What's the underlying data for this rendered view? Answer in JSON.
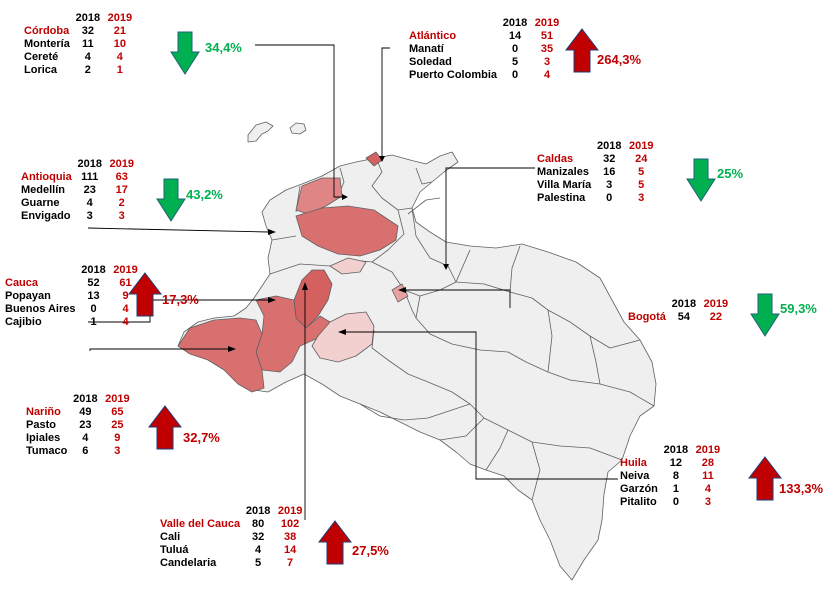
{
  "colors": {
    "increase": "#c00000",
    "decrease": "#00b050",
    "map_base": "#efefef",
    "map_border": "#606060",
    "leader_line": "#000000",
    "shade_high": "#d46060",
    "shade_mid": "#e08585",
    "shade_low": "#f3d0d0"
  },
  "year_headers": {
    "y2018": "2018",
    "y2019": "2019"
  },
  "groups": [
    {
      "id": "cordoba",
      "department": "Córdoba",
      "v2018": "32",
      "v2019": "21",
      "rows": [
        {
          "name": "Montería",
          "v2018": "11",
          "v2019": "10"
        },
        {
          "name": "Cereté",
          "v2018": "4",
          "v2019": "4"
        },
        {
          "name": "Lorica",
          "v2018": "2",
          "v2019": "1"
        }
      ],
      "change": "34,4%",
      "direction": "down",
      "arrow_icon": "arrow-down-icon"
    },
    {
      "id": "atlantico",
      "department": "Atlántico",
      "v2018": "14",
      "v2019": "51",
      "rows": [
        {
          "name": "Manatí",
          "v2018": "0",
          "v2019": "35"
        },
        {
          "name": "Soledad",
          "v2018": "5",
          "v2019": "3"
        },
        {
          "name": "Puerto Colombia",
          "v2018": "0",
          "v2019": "4"
        }
      ],
      "change": "264,3%",
      "direction": "up",
      "arrow_icon": "arrow-up-icon"
    },
    {
      "id": "antioquia",
      "department": "Antioquia",
      "v2018": "111",
      "v2019": "63",
      "rows": [
        {
          "name": "Medellín",
          "v2018": "23",
          "v2019": "17"
        },
        {
          "name": "Guarne",
          "v2018": "4",
          "v2019": "2"
        },
        {
          "name": "Envigado",
          "v2018": "3",
          "v2019": "3"
        }
      ],
      "change": "43,2%",
      "direction": "down",
      "arrow_icon": "arrow-down-icon"
    },
    {
      "id": "caldas",
      "department": "Caldas",
      "v2018": "32",
      "v2019": "24",
      "rows": [
        {
          "name": "Manizales",
          "v2018": "16",
          "v2019": "5"
        },
        {
          "name": "Villa María",
          "v2018": "3",
          "v2019": "5"
        },
        {
          "name": "Palestina",
          "v2018": "0",
          "v2019": "3"
        }
      ],
      "change": "25%",
      "direction": "down",
      "arrow_icon": "arrow-down-icon"
    },
    {
      "id": "cauca",
      "department": "Cauca",
      "v2018": "52",
      "v2019": "61",
      "rows": [
        {
          "name": "Popayan",
          "v2018": "13",
          "v2019": "9"
        },
        {
          "name": "Buenos Aires",
          "v2018": "0",
          "v2019": "4"
        },
        {
          "name": "Cajibio",
          "v2018": "1",
          "v2019": "4"
        }
      ],
      "change": "17,3%",
      "direction": "up",
      "arrow_icon": "arrow-up-icon"
    },
    {
      "id": "bogota",
      "department": "Bogotá",
      "v2018": "54",
      "v2019": "22",
      "rows": [],
      "change": "59,3%",
      "direction": "down",
      "arrow_icon": "arrow-down-icon"
    },
    {
      "id": "narino",
      "department": "Nariño",
      "v2018": "49",
      "v2019": "65",
      "rows": [
        {
          "name": "Pasto",
          "v2018": "23",
          "v2019": "25"
        },
        {
          "name": "Ipiales",
          "v2018": "4",
          "v2019": "9"
        },
        {
          "name": "Tumaco",
          "v2018": "6",
          "v2019": "3"
        }
      ],
      "change": "32,7%",
      "direction": "up",
      "arrow_icon": "arrow-up-icon"
    },
    {
      "id": "huila",
      "department": "Huila",
      "v2018": "12",
      "v2019": "28",
      "rows": [
        {
          "name": "Neiva",
          "v2018": "8",
          "v2019": "11"
        },
        {
          "name": "Garzón",
          "v2018": "1",
          "v2019": "4"
        },
        {
          "name": "Pitalito",
          "v2018": "0",
          "v2019": "3"
        }
      ],
      "change": "133,3%",
      "direction": "up",
      "arrow_icon": "arrow-up-icon"
    },
    {
      "id": "valle",
      "department": "Valle del Cauca",
      "v2018": "80",
      "v2019": "102",
      "rows": [
        {
          "name": "Cali",
          "v2018": "32",
          "v2019": "38"
        },
        {
          "name": "Tuluá",
          "v2018": "4",
          "v2019": "14"
        },
        {
          "name": "Candelaria",
          "v2018": "5",
          "v2019": "7"
        }
      ],
      "change": "27,5%",
      "direction": "up",
      "arrow_icon": "arrow-up-icon"
    }
  ]
}
